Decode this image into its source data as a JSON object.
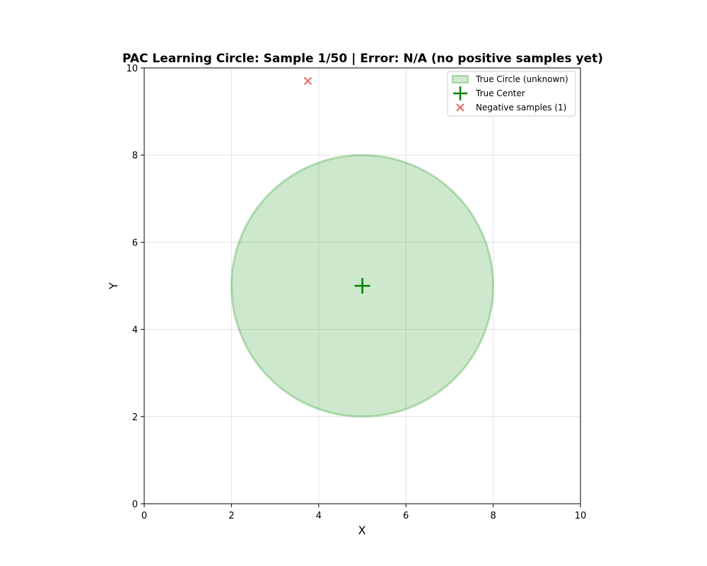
{
  "chart_data": {
    "type": "scatter",
    "title": "PAC Learning Circle: Sample 1/50 | Error: N/A (no positive samples yet)",
    "xlabel": "X",
    "ylabel": "Y",
    "xlim": [
      0,
      10
    ],
    "ylim": [
      0,
      10
    ],
    "x_ticks": [
      0,
      2,
      4,
      6,
      8,
      10
    ],
    "y_ticks": [
      0,
      2,
      4,
      6,
      8,
      10
    ],
    "grid": true,
    "legend_position": "top-right",
    "true_circle": {
      "name": "True Circle (unknown)",
      "center": [
        5,
        5
      ],
      "radius": 3,
      "color": "#2ca02c"
    },
    "true_center": {
      "name": "True Center",
      "x": 5,
      "y": 5,
      "color": "#008000"
    },
    "negative_samples": {
      "name": "Negative samples (1)",
      "color": "#e8666a",
      "points": [
        [
          3.75,
          9.7
        ]
      ]
    }
  }
}
